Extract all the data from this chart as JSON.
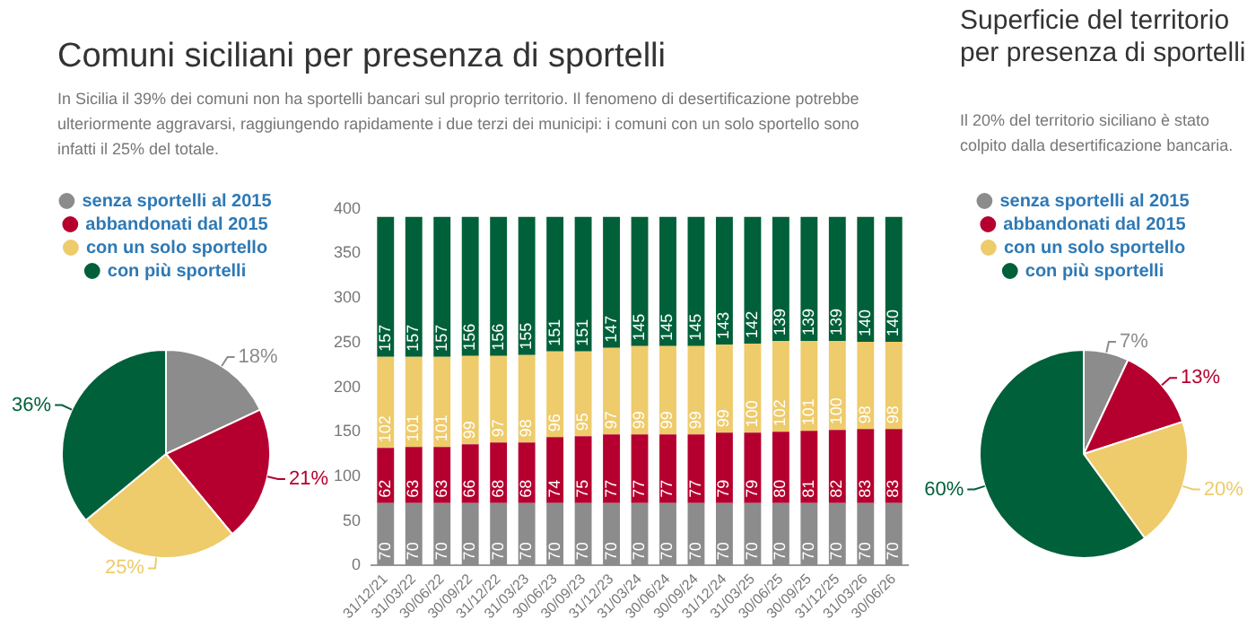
{
  "chart_data": [
    {
      "type": "pie",
      "title": "Comuni siciliani per presenza di sportelli",
      "subtitle": "In Sicilia il 39% dei comuni non ha sportelli bancari sul proprio territorio. Il fenomeno di desertificazione potrebbe ulteriormente aggravarsi, raggiungendo rapidamente i due terzi dei municipi: i comuni con un solo sportello sono infatti il 25% del totale.",
      "categories": [
        "senza sportelli al 2015",
        "abbandonati dal 2015",
        "con un solo sportello",
        "con più sportelli"
      ],
      "values": [
        18,
        21,
        25,
        36
      ],
      "value_labels": [
        "18%",
        "21%",
        "25%",
        "36%"
      ],
      "colors": [
        "#8c8c8c",
        "#b5002f",
        "#eecb6b",
        "#00603a"
      ],
      "legend": "top"
    },
    {
      "type": "bar",
      "stacked": true,
      "categories": [
        "31/12/21",
        "31/03/22",
        "30/06/22",
        "30/09/22",
        "31/12/22",
        "31/03/23",
        "30/06/23",
        "30/09/23",
        "31/12/23",
        "31/03/24",
        "30/06/24",
        "30/09/24",
        "31/12/24",
        "31/03/25",
        "30/06/25",
        "30/09/25",
        "31/12/25",
        "31/03/26",
        "30/06/26"
      ],
      "series": [
        {
          "color": "#8c8c8c",
          "values": [
            70,
            70,
            70,
            70,
            70,
            70,
            70,
            70,
            70,
            70,
            70,
            70,
            70,
            70,
            70,
            70,
            70,
            70,
            70
          ]
        },
        {
          "color": "#b5002f",
          "values": [
            62,
            63,
            63,
            66,
            68,
            68,
            74,
            75,
            77,
            77,
            77,
            77,
            79,
            79,
            80,
            81,
            82,
            83,
            83
          ]
        },
        {
          "color": "#eecb6b",
          "values": [
            102,
            101,
            101,
            99,
            97,
            98,
            96,
            95,
            97,
            99,
            99,
            99,
            99,
            100,
            102,
            101,
            100,
            98,
            98
          ]
        },
        {
          "color": "#00603a",
          "values": [
            157,
            157,
            157,
            156,
            156,
            155,
            151,
            151,
            147,
            145,
            145,
            145,
            143,
            142,
            139,
            139,
            139,
            140,
            140
          ]
        }
      ],
      "ylim": [
        0,
        400
      ],
      "yticks": [
        0,
        50,
        100,
        150,
        200,
        250,
        300,
        350,
        400
      ],
      "grid": false,
      "legend": false,
      "data_labels": true
    },
    {
      "type": "pie",
      "title": "Superficie del territorio per presenza di sportelli",
      "subtitle": "Il 20% del territorio siciliano è stato colpito dalla desertificazione bancaria.",
      "categories": [
        "senza sportelli al 2015",
        "abbandonati dal 2015",
        "con un solo sportello",
        "con più sportelli"
      ],
      "values": [
        7,
        13,
        20,
        60
      ],
      "value_labels": [
        "7%",
        "13%",
        "20%",
        "60%"
      ],
      "colors": [
        "#8c8c8c",
        "#b5002f",
        "#eecb6b",
        "#00603a"
      ],
      "legend": "top"
    }
  ]
}
